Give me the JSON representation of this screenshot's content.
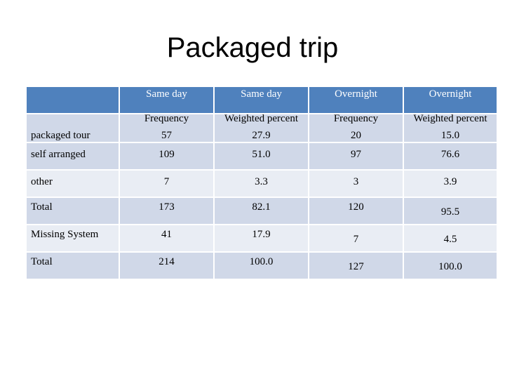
{
  "title": "Packaged trip",
  "header": {
    "cols": [
      "Same day",
      "Same day",
      "Overnight",
      "Overnight"
    ]
  },
  "subheader": {
    "cols": [
      "Frequency",
      "Weighted percent",
      "Frequency",
      "Weighted percent"
    ]
  },
  "rows": [
    {
      "label": "packaged tour",
      "values": [
        "57",
        "27.9",
        "20",
        "15.0"
      ]
    },
    {
      "label": "self arranged",
      "values": [
        "109",
        "51.0",
        "97",
        "76.6"
      ]
    },
    {
      "label": "other",
      "values": [
        "7",
        "3.3",
        "3",
        "3.9"
      ]
    },
    {
      "label": "Total",
      "values": [
        "173",
        "82.1",
        "120",
        "95.5"
      ]
    },
    {
      "label": "Missing System",
      "values": [
        "41",
        "17.9",
        "7",
        "4.5"
      ]
    },
    {
      "label": "Total",
      "values": [
        "214",
        "100.0",
        "127",
        "100.0"
      ]
    }
  ],
  "colors": {
    "header_bg": "#4f81bd",
    "row_dark": "#d0d8e8",
    "row_light": "#e9edf4"
  }
}
